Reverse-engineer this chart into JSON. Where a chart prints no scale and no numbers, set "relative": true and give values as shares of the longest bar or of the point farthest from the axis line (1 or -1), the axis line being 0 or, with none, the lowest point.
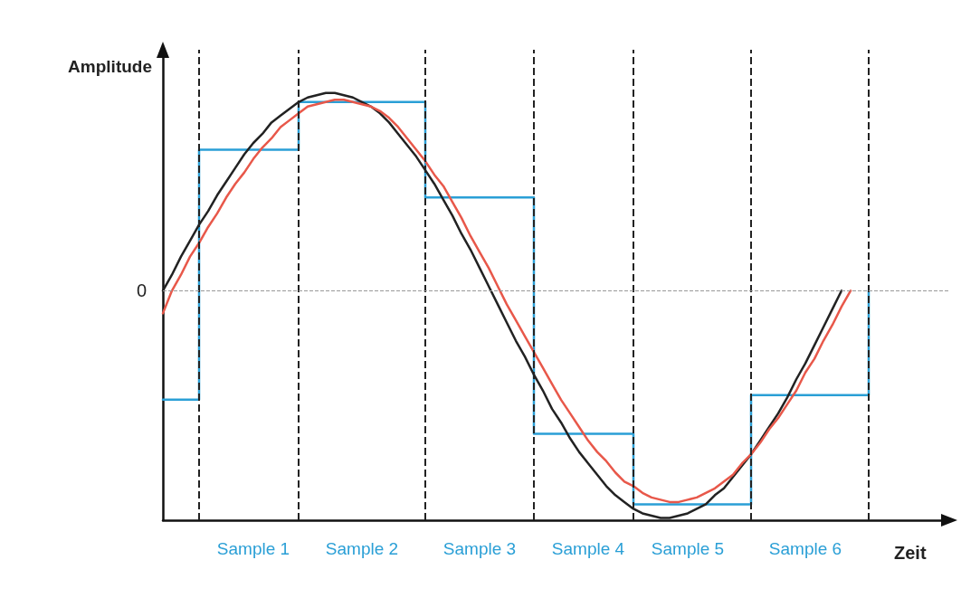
{
  "chart_data": {
    "type": "line",
    "relative": true,
    "ylabel": "Amplitude",
    "xlabel": "Zeit",
    "tick_labels": "x",
    "grid": false,
    "marker": "none",
    "line_style": "solid",
    "categories": [
      null,
      null,
      null,
      null,
      null,
      null,
      null,
      null,
      null,
      null,
      "Sample 1",
      null,
      null,
      null,
      null,
      null,
      null,
      null,
      null,
      null,
      null,
      null,
      "Sample 2",
      null,
      null,
      null,
      null,
      null,
      null,
      null,
      null,
      null,
      null,
      null,
      null,
      "Sample 3",
      null,
      null,
      null,
      null,
      null,
      null,
      null,
      null,
      null,
      null,
      null,
      "Sample 4",
      null,
      null,
      null,
      null,
      null,
      null,
      null,
      null,
      null,
      null,
      "Sample 5",
      null,
      null,
      null,
      null,
      null,
      null,
      null,
      null,
      null,
      null,
      null,
      null,
      "Sample 6",
      null,
      null,
      null,
      null,
      null,
      null,
      null,
      null,
      null,
      null,
      null,
      null,
      null,
      null,
      null,
      null
    ],
    "series": [
      {
        "type": "line",
        "color": "#222222",
        "values": [
          0,
          0.07,
          0.15,
          0.22,
          0.29,
          0.35,
          0.42,
          0.48,
          0.54,
          0.6,
          0.65,
          0.69,
          0.74,
          0.77,
          0.8,
          0.83,
          0.85,
          0.86,
          0.87,
          0.87,
          0.86,
          0.85,
          0.83,
          0.81,
          0.78,
          0.74,
          0.69,
          0.64,
          0.59,
          0.53,
          0.47,
          0.4,
          0.33,
          0.25,
          0.18,
          0.1,
          0.02,
          -0.06,
          -0.14,
          -0.22,
          -0.29,
          -0.37,
          -0.44,
          -0.52,
          -0.58,
          -0.65,
          -0.71,
          -0.76,
          -0.81,
          -0.86,
          -0.9,
          -0.93,
          -0.96,
          -0.98,
          -0.99,
          -1.0,
          -1.0,
          -0.99,
          -0.98,
          -0.96,
          -0.94,
          -0.9,
          -0.87,
          -0.82,
          -0.77,
          -0.72,
          -0.66,
          -0.6,
          -0.54,
          -0.47,
          -0.39,
          -0.32,
          -0.24,
          -0.16,
          -0.08,
          0,
          null,
          null,
          null,
          null,
          null,
          null,
          null,
          null,
          null,
          null,
          null,
          null
        ]
      },
      {
        "type": "line",
        "color": "#e8584a",
        "values": [
          -0.1,
          0,
          0.07,
          0.15,
          0.21,
          0.28,
          0.34,
          0.41,
          0.47,
          0.52,
          0.58,
          0.63,
          0.67,
          0.72,
          0.75,
          0.78,
          0.81,
          0.82,
          0.83,
          0.84,
          0.84,
          0.83,
          0.82,
          0.81,
          0.79,
          0.76,
          0.72,
          0.67,
          0.62,
          0.57,
          0.51,
          0.46,
          0.39,
          0.32,
          0.24,
          0.17,
          0.1,
          0.02,
          -0.06,
          -0.13,
          -0.2,
          -0.27,
          -0.34,
          -0.41,
          -0.48,
          -0.54,
          -0.6,
          -0.66,
          -0.71,
          -0.75,
          -0.8,
          -0.84,
          -0.86,
          -0.89,
          -0.91,
          -0.92,
          -0.93,
          -0.93,
          -0.92,
          -0.91,
          -0.89,
          -0.87,
          -0.84,
          -0.81,
          -0.76,
          -0.72,
          -0.67,
          -0.61,
          -0.56,
          -0.5,
          -0.44,
          -0.36,
          -0.3,
          -0.22,
          -0.15,
          -0.07,
          0,
          null,
          null,
          null,
          null,
          null,
          null,
          null,
          null,
          null,
          null,
          null
        ]
      },
      {
        "type": "step",
        "color": "#2a9fd6",
        "values": [
          -0.48,
          -0.48,
          -0.48,
          -0.48,
          0.62,
          0.62,
          0.62,
          0.62,
          0.62,
          0.62,
          0.62,
          0.62,
          0.62,
          0.62,
          0.62,
          0.83,
          0.83,
          0.83,
          0.83,
          0.83,
          0.83,
          0.83,
          0.83,
          0.83,
          0.83,
          0.83,
          0.83,
          0.83,
          0.83,
          0.41,
          0.41,
          0.41,
          0.41,
          0.41,
          0.41,
          0.41,
          0.41,
          0.41,
          0.41,
          0.41,
          0.41,
          -0.63,
          -0.63,
          -0.63,
          -0.63,
          -0.63,
          -0.63,
          -0.63,
          -0.63,
          -0.63,
          -0.63,
          -0.63,
          -0.94,
          -0.94,
          -0.94,
          -0.94,
          -0.94,
          -0.94,
          -0.94,
          -0.94,
          -0.94,
          -0.94,
          -0.94,
          -0.94,
          -0.94,
          -0.46,
          -0.46,
          -0.46,
          -0.46,
          -0.46,
          -0.46,
          -0.46,
          -0.46,
          -0.46,
          -0.46,
          -0.46,
          -0.46,
          -0.46,
          0,
          null,
          null,
          null,
          null,
          null,
          null,
          null,
          null,
          null
        ]
      }
    ],
    "ref_lines": [
      {
        "axis": "y",
        "value": 0,
        "label": "0",
        "color": "#999999",
        "line_style": "dashed"
      }
    ]
  }
}
